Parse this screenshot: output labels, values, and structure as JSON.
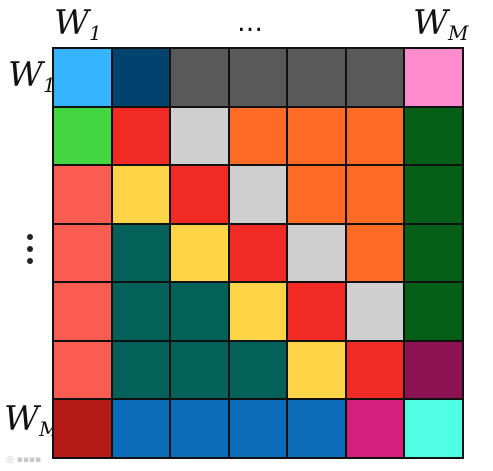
{
  "labels": {
    "top_left_main": "W",
    "top_left_sub": "1",
    "top_right_main": "W",
    "top_right_sub": "M",
    "left_top_main": "W",
    "left_top_sub": "1",
    "left_bottom_main": "W",
    "left_bottom_sub": "M",
    "top_ellipsis": "…"
  },
  "colors": {
    "light_blue": "#35b5ff",
    "navy": "#00426e",
    "dark_gray": "#595959",
    "pink": "#ff8ccc",
    "green": "#44d640",
    "red": "#f12a26",
    "light_gray": "#cfcfcf",
    "orange": "#ff6a24",
    "dark_green": "#035f15",
    "salmon": "#fb5c52",
    "yellow": "#ffd447",
    "teal": "#03615a",
    "maroon": "#8c1253",
    "brick": "#b41a16",
    "blue": "#0b6dba",
    "magenta": "#d51f7c",
    "cyan": "#4fffe4"
  },
  "matrix": [
    [
      "light_blue",
      "navy",
      "dark_gray",
      "dark_gray",
      "dark_gray",
      "dark_gray",
      "pink"
    ],
    [
      "green",
      "red",
      "light_gray",
      "orange",
      "orange",
      "orange",
      "dark_green"
    ],
    [
      "salmon",
      "yellow",
      "red",
      "light_gray",
      "orange",
      "orange",
      "dark_green"
    ],
    [
      "salmon",
      "teal",
      "yellow",
      "red",
      "light_gray",
      "orange",
      "dark_green"
    ],
    [
      "salmon",
      "teal",
      "teal",
      "yellow",
      "red",
      "light_gray",
      "dark_green"
    ],
    [
      "salmon",
      "teal",
      "teal",
      "teal",
      "yellow",
      "red",
      "maroon"
    ],
    [
      "brick",
      "blue",
      "blue",
      "blue",
      "blue",
      "magenta",
      "cyan"
    ]
  ]
}
